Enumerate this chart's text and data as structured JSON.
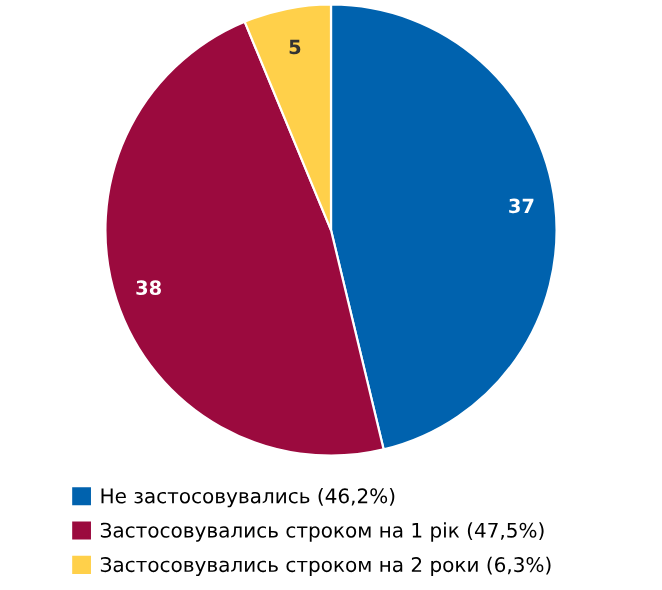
{
  "chart_data": {
    "type": "pie",
    "categories": [
      "Не застосовувались (46,2%)",
      "Застосовувались строком на 1 рік (47,5%)",
      "Застосовувались строком на 2 роки (6,3%)"
    ],
    "values": [
      37,
      38,
      5
    ],
    "colors": [
      "#0062ae",
      "#9b0a3e",
      "#ffd04a"
    ],
    "data_labels": true,
    "legend": "bottom"
  }
}
